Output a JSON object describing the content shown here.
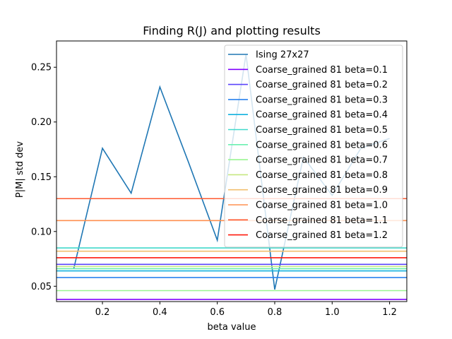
{
  "chart_data": {
    "type": "line",
    "title": "Finding R(J) and plotting results",
    "xlabel": "beta value",
    "ylabel": "P|M| std dev",
    "xlim": [
      0.04,
      1.26
    ],
    "ylim": [
      0.036,
      0.274
    ],
    "xticks": [
      "0.2",
      "0.4",
      "0.6",
      "0.8",
      "1.0",
      "1.2"
    ],
    "xtick_values": [
      0.2,
      0.4,
      0.6,
      0.8,
      1.0,
      1.2
    ],
    "yticks": [
      "0.05",
      "0.10",
      "0.15",
      "0.20",
      "0.25"
    ],
    "ytick_values": [
      0.05,
      0.1,
      0.15,
      0.2,
      0.25
    ],
    "grid": false,
    "legend_position": "top-right",
    "series": [
      {
        "name": "Ising 27x27",
        "color": "#1f77b4",
        "kind": "line",
        "x": [
          0.1,
          0.2,
          0.3,
          0.4,
          0.5,
          0.6,
          0.7,
          0.8,
          0.9,
          1.0,
          1.1,
          1.2
        ],
        "y": [
          0.066,
          0.176,
          0.135,
          0.232,
          0.163,
          0.092,
          0.262,
          0.047,
          0.168,
          0.133,
          0.176,
          0.185
        ]
      },
      {
        "name": "Coarse_grained 81 beta=0.1",
        "color": "#8000ff",
        "kind": "hline",
        "y": 0.038
      },
      {
        "name": "Coarse_grained 81 beta=0.2",
        "color": "#5a44fb",
        "kind": "hline",
        "y": 0.07
      },
      {
        "name": "Coarse_grained 81 beta=0.3",
        "color": "#2a82ee",
        "kind": "hline",
        "y": 0.058
      },
      {
        "name": "Coarse_grained 81 beta=0.4",
        "color": "#12b1de",
        "kind": "hline",
        "y": 0.064
      },
      {
        "name": "Coarse_grained 81 beta=0.5",
        "color": "#40d9cb",
        "kind": "hline",
        "y": 0.085
      },
      {
        "name": "Coarse_grained 81 beta=0.6",
        "color": "#6af0b0",
        "kind": "hline",
        "y": 0.066
      },
      {
        "name": "Coarse_grained 81 beta=0.7",
        "color": "#9af590",
        "kind": "hline",
        "y": 0.046
      },
      {
        "name": "Coarse_grained 81 beta=0.8",
        "color": "#c6e881",
        "kind": "hline",
        "y": 0.068
      },
      {
        "name": "Coarse_grained 81 beta=0.9",
        "color": "#f2bf6e",
        "kind": "hline",
        "y": 0.082
      },
      {
        "name": "Coarse_grained 81 beta=1.0",
        "color": "#ff9050",
        "kind": "hline",
        "y": 0.11
      },
      {
        "name": "Coarse_grained 81 beta=1.1",
        "color": "#ff5a30",
        "kind": "hline",
        "y": 0.13
      },
      {
        "name": "Coarse_grained 81 beta=1.2",
        "color": "#ff1a0d",
        "kind": "hline",
        "y": 0.076
      }
    ]
  }
}
